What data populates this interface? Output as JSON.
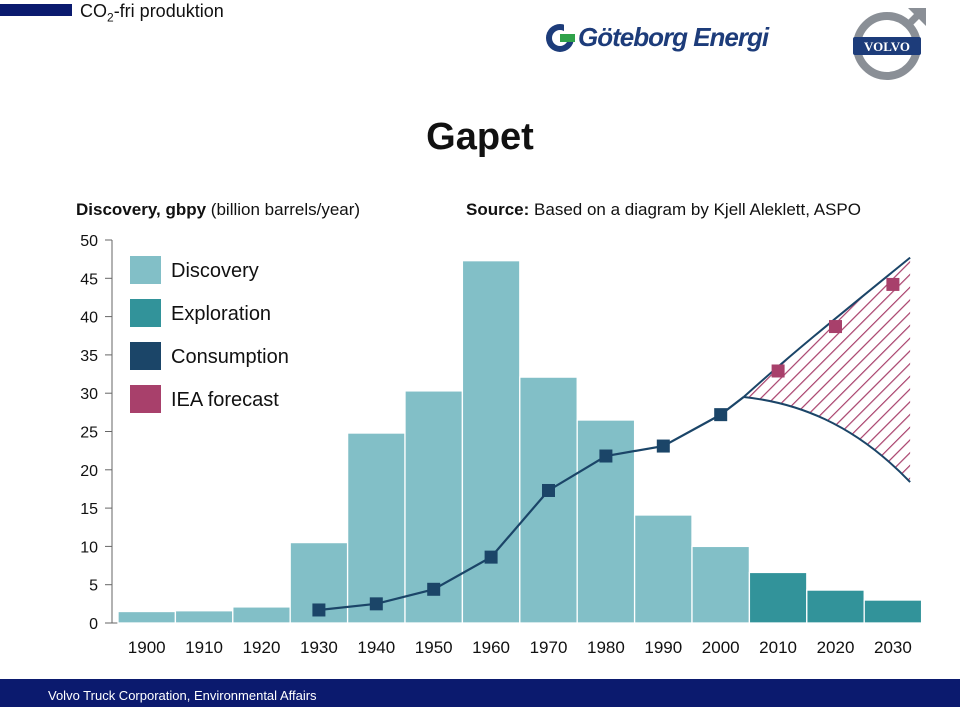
{
  "header": {
    "title_prefix": "CO",
    "title_sub": "2",
    "title_suffix": "-fri produktion",
    "logo_text": "Göteborg Energi",
    "volvo_text": "VOLVO"
  },
  "slide": {
    "title": "Gapet",
    "ylabel_bold": "Discovery, gbpy",
    "ylabel_rest": " (billion barrels/year)",
    "source_bold": "Source:",
    "source_rest": " Based on a diagram by Kjell Aleklett, ASPO"
  },
  "footer": {
    "text": "Volvo Truck Corporation, Environmental Affairs"
  },
  "colors": {
    "discovery": "#82bfc7",
    "exploration": "#32939a",
    "consumption": "#1b4568",
    "iea": "#a8406b",
    "brand_navy": "#0b1a6e"
  },
  "chart_data": {
    "type": "bar",
    "title": "Gapet",
    "ylabel": "Discovery, gbpy (billion barrels/year)",
    "ylim": [
      0,
      50
    ],
    "yticks": [
      "0",
      "5",
      "10",
      "15",
      "20",
      "25",
      "30",
      "35",
      "40",
      "45",
      "50"
    ],
    "x_labels": [
      "1900",
      "1910",
      "1920",
      "1930",
      "1940",
      "1950",
      "1960",
      "1970",
      "1980",
      "1990",
      "2000",
      "2010",
      "2020",
      "2030"
    ],
    "legend": [
      "Discovery",
      "Exploration",
      "Consumption",
      "IEA forecast"
    ],
    "legend_position": "top-left",
    "bars": [
      {
        "period": "1900",
        "value": 1.5,
        "series": "Discovery"
      },
      {
        "period": "1910",
        "value": 1.6,
        "series": "Discovery"
      },
      {
        "period": "1920",
        "value": 2.1,
        "series": "Discovery"
      },
      {
        "period": "1930",
        "value": 10.5,
        "series": "Discovery"
      },
      {
        "period": "1940",
        "value": 24.8,
        "series": "Discovery"
      },
      {
        "period": "1950",
        "value": 30.3,
        "series": "Discovery"
      },
      {
        "period": "1960",
        "value": 47.3,
        "series": "Discovery"
      },
      {
        "period": "1970",
        "value": 32.1,
        "series": "Discovery"
      },
      {
        "period": "1980",
        "value": 26.5,
        "series": "Discovery"
      },
      {
        "period": "1990",
        "value": 14.1,
        "series": "Discovery"
      },
      {
        "period": "2000",
        "value": 10.0,
        "series": "Discovery"
      },
      {
        "period": "2010",
        "value": 6.6,
        "series": "Exploration"
      },
      {
        "period": "2020",
        "value": 4.3,
        "series": "Exploration"
      },
      {
        "period": "2030",
        "value": 3.0,
        "series": "Exploration"
      }
    ],
    "consumption": [
      {
        "x": 1935,
        "y": 1.7
      },
      {
        "x": 1945,
        "y": 2.5
      },
      {
        "x": 1955,
        "y": 4.4
      },
      {
        "x": 1965,
        "y": 8.6
      },
      {
        "x": 1975,
        "y": 17.3
      },
      {
        "x": 1985,
        "y": 21.8
      },
      {
        "x": 1995,
        "y": 23.1
      },
      {
        "x": 2005,
        "y": 27.2
      }
    ],
    "iea_forecast": [
      {
        "x": 2015,
        "y": 32.9
      },
      {
        "x": 2025,
        "y": 38.7
      },
      {
        "x": 2035,
        "y": 44.2
      }
    ],
    "gap_upper": [
      {
        "x": 2009,
        "y": 29.5
      },
      {
        "x": 2018,
        "y": 35.6
      },
      {
        "x": 2028,
        "y": 41.6
      },
      {
        "x": 2038,
        "y": 47.7
      }
    ],
    "gap_lower": [
      {
        "x": 2009,
        "y": 29.5
      },
      {
        "x": 2018,
        "y": 28.8
      },
      {
        "x": 2028,
        "y": 26.2
      },
      {
        "x": 2038,
        "y": 18.4
      }
    ]
  }
}
